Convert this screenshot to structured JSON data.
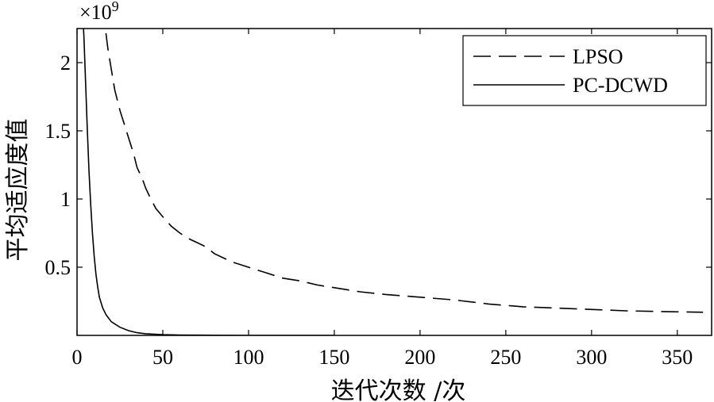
{
  "chart_data": {
    "type": "line",
    "xlabel": "迭代次数 /次",
    "ylabel": "平均适应度值",
    "y_multiplier": "×10",
    "y_multiplier_exp": "9",
    "xlim": [
      0,
      370
    ],
    "ylim": [
      0,
      2.25
    ],
    "x_ticks": [
      0,
      50,
      100,
      150,
      200,
      250,
      300,
      350
    ],
    "y_ticks": [
      0.5,
      1,
      1.5,
      2
    ],
    "legend_position": "top-right",
    "grid": false,
    "series": [
      {
        "name": "LPSO",
        "style": "dashed",
        "points": [
          [
            15,
            2.4
          ],
          [
            18,
            2.1
          ],
          [
            20,
            1.95
          ],
          [
            22,
            1.8
          ],
          [
            25,
            1.65
          ],
          [
            28,
            1.53
          ],
          [
            30,
            1.45
          ],
          [
            33,
            1.33
          ],
          [
            35,
            1.23
          ],
          [
            38,
            1.15
          ],
          [
            40,
            1.08
          ],
          [
            43,
            1.0
          ],
          [
            46,
            0.93
          ],
          [
            50,
            0.87
          ],
          [
            55,
            0.8
          ],
          [
            60,
            0.75
          ],
          [
            65,
            0.71
          ],
          [
            70,
            0.68
          ],
          [
            75,
            0.65
          ],
          [
            80,
            0.6
          ],
          [
            90,
            0.54
          ],
          [
            100,
            0.5
          ],
          [
            110,
            0.46
          ],
          [
            120,
            0.42
          ],
          [
            130,
            0.4
          ],
          [
            140,
            0.37
          ],
          [
            150,
            0.35
          ],
          [
            165,
            0.32
          ],
          [
            180,
            0.3
          ],
          [
            200,
            0.28
          ],
          [
            220,
            0.26
          ],
          [
            240,
            0.23
          ],
          [
            260,
            0.21
          ],
          [
            280,
            0.2
          ],
          [
            300,
            0.19
          ],
          [
            320,
            0.18
          ],
          [
            340,
            0.175
          ],
          [
            365,
            0.17
          ]
        ]
      },
      {
        "name": "PC-DCWD",
        "style": "solid",
        "points": [
          [
            3,
            2.4
          ],
          [
            4,
            2.2
          ],
          [
            5,
            1.85
          ],
          [
            6,
            1.5
          ],
          [
            7,
            1.2
          ],
          [
            8,
            0.95
          ],
          [
            9,
            0.75
          ],
          [
            10,
            0.58
          ],
          [
            11,
            0.45
          ],
          [
            12,
            0.36
          ],
          [
            13,
            0.28
          ],
          [
            15,
            0.2
          ],
          [
            17,
            0.15
          ],
          [
            20,
            0.1
          ],
          [
            25,
            0.06
          ],
          [
            30,
            0.035
          ],
          [
            35,
            0.02
          ],
          [
            40,
            0.012
          ],
          [
            50,
            0.006
          ],
          [
            60,
            0.003
          ],
          [
            80,
            0.001
          ],
          [
            100,
            0.0
          ],
          [
            150,
            0.0
          ]
        ]
      }
    ]
  }
}
